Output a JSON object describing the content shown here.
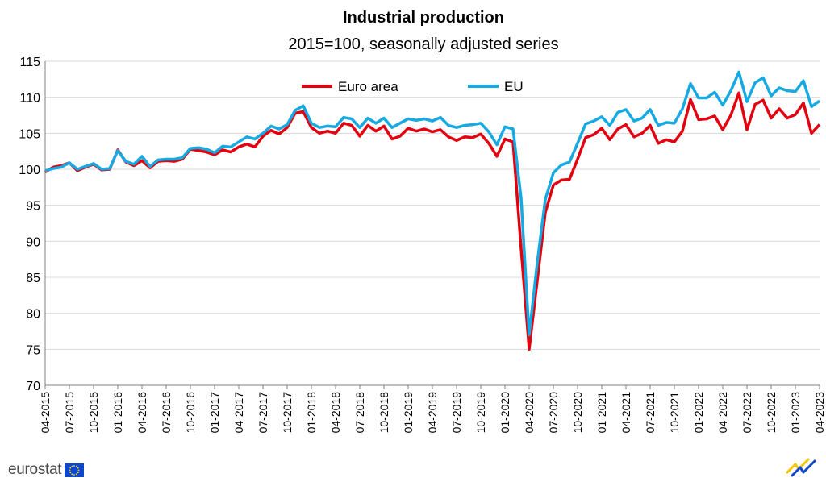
{
  "chart_data": {
    "type": "line",
    "title": "Industrial production",
    "subtitle": "2015=100, seasonally adjusted series",
    "xlabel": "",
    "ylabel": "",
    "ylim": [
      70,
      115
    ],
    "yticks": [
      70,
      75,
      80,
      85,
      90,
      95,
      100,
      105,
      110,
      115
    ],
    "grid": true,
    "legend_position": "top-center",
    "x_tick_labels": [
      "04-2015",
      "07-2015",
      "10-2015",
      "01-2016",
      "04-2016",
      "07-2016",
      "10-2016",
      "01-2017",
      "04-2017",
      "07-2017",
      "10-2017",
      "01-2018",
      "04-2018",
      "07-2018",
      "10-2018",
      "01-2019",
      "04-2019",
      "07-2019",
      "10-2019",
      "01-2020",
      "04-2020",
      "07-2020",
      "10-2020",
      "01-2021",
      "04-2021",
      "07-2021",
      "10-2021",
      "01-2022",
      "04-2022",
      "07-2022",
      "10-2022",
      "01-2023",
      "04-2023"
    ],
    "x_start": "04-2015",
    "x_end": "04-2023",
    "series": [
      {
        "name": "Euro area",
        "color": "#e3000f",
        "values": [
          99.6,
          100.3,
          100.5,
          100.9,
          99.8,
          100.3,
          100.7,
          99.9,
          100.0,
          102.7,
          101.0,
          100.5,
          101.2,
          100.2,
          101.1,
          101.2,
          101.1,
          101.4,
          102.8,
          102.6,
          102.4,
          102.0,
          102.7,
          102.4,
          103.1,
          103.5,
          103.1,
          104.6,
          105.4,
          104.9,
          105.8,
          107.8,
          108.0,
          105.8,
          105.0,
          105.3,
          105.0,
          106.4,
          106.1,
          104.6,
          106.1,
          105.3,
          106.0,
          104.2,
          104.6,
          105.7,
          105.3,
          105.6,
          105.2,
          105.5,
          104.5,
          104.0,
          104.5,
          104.4,
          104.9,
          103.6,
          101.8,
          104.2,
          103.8,
          89.0,
          75.0,
          84.5,
          94.0,
          97.8,
          98.5,
          98.6,
          101.4,
          104.4,
          104.8,
          105.7,
          104.1,
          105.6,
          106.2,
          104.5,
          105.0,
          106.1,
          103.6,
          104.1,
          103.8,
          105.3,
          109.7,
          106.9,
          107.0,
          107.4,
          105.5,
          107.5,
          110.6,
          105.5,
          109.0,
          109.6,
          107.1,
          108.4,
          107.1,
          107.6,
          109.2,
          105.0,
          106.2
        ]
      },
      {
        "name": "EU",
        "color": "#17a9e1",
        "values": [
          99.8,
          100.1,
          100.3,
          100.9,
          100.0,
          100.4,
          100.8,
          100.0,
          100.1,
          102.6,
          101.1,
          100.7,
          101.8,
          100.4,
          101.3,
          101.4,
          101.4,
          101.6,
          102.9,
          103.0,
          102.8,
          102.3,
          103.2,
          103.1,
          103.8,
          104.5,
          104.2,
          105.0,
          106.0,
          105.6,
          106.2,
          108.2,
          108.8,
          106.4,
          105.8,
          106.0,
          105.9,
          107.2,
          107.0,
          105.8,
          107.1,
          106.4,
          107.1,
          105.8,
          106.4,
          107.0,
          106.8,
          107.0,
          106.7,
          107.2,
          106.1,
          105.8,
          106.1,
          106.2,
          106.4,
          105.2,
          103.4,
          105.9,
          105.6,
          96.0,
          77.0,
          87.0,
          95.8,
          99.5,
          100.6,
          101.0,
          103.6,
          106.3,
          106.7,
          107.3,
          106.1,
          107.9,
          108.3,
          106.7,
          107.1,
          108.3,
          106.1,
          106.5,
          106.4,
          108.4,
          111.9,
          109.9,
          109.9,
          110.7,
          108.9,
          110.9,
          113.5,
          109.4,
          112.0,
          112.7,
          110.2,
          111.3,
          110.9,
          110.8,
          112.3,
          108.7,
          109.5
        ]
      }
    ]
  },
  "branding": {
    "logo_text": "eurostat"
  }
}
